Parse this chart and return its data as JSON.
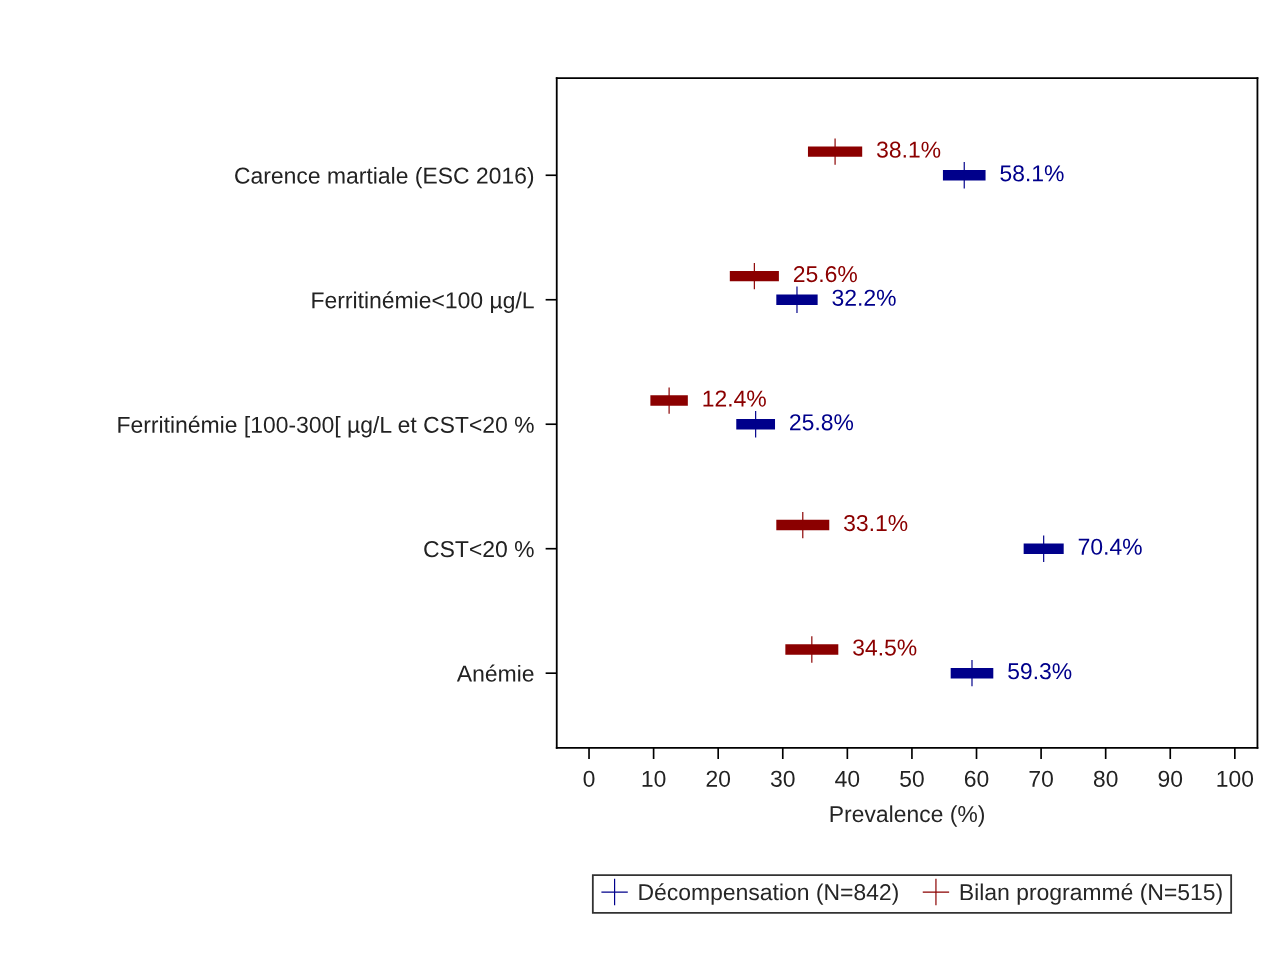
{
  "chart_data": {
    "type": "scatter",
    "orientation": "horizontal",
    "categories": [
      "Carence martiale (ESC 2016)",
      "Ferritinémie<100 µg/L",
      "Ferritinémie [100-300[ µg/L et CST<20 %",
      "CST<20 %",
      "Anémie"
    ],
    "series": [
      {
        "name": "Décompensation (N=842)",
        "color": "#00008b",
        "values": [
          58.1,
          32.2,
          25.8,
          70.4,
          59.3
        ],
        "errors": [
          3.3,
          3.2,
          3.0,
          3.1,
          3.3
        ],
        "value_labels": [
          "58.1%",
          "32.2%",
          "25.8%",
          "70.4%",
          "59.3%"
        ]
      },
      {
        "name": "Bilan programmé (N=515)",
        "color": "#8b0000",
        "values": [
          38.1,
          25.6,
          12.4,
          33.1,
          34.5
        ],
        "errors": [
          4.2,
          3.8,
          2.9,
          4.1,
          4.1
        ],
        "value_labels": [
          "38.1%",
          "25.6%",
          "12.4%",
          "33.1%",
          "34.5%"
        ]
      }
    ],
    "xlabel": "Prevalence (%)",
    "xlim": [
      -5,
      103.5
    ],
    "xticks": [
      0,
      10,
      20,
      30,
      40,
      50,
      60,
      70,
      80,
      90,
      100
    ],
    "marker": "cross",
    "legend": "bottom"
  }
}
